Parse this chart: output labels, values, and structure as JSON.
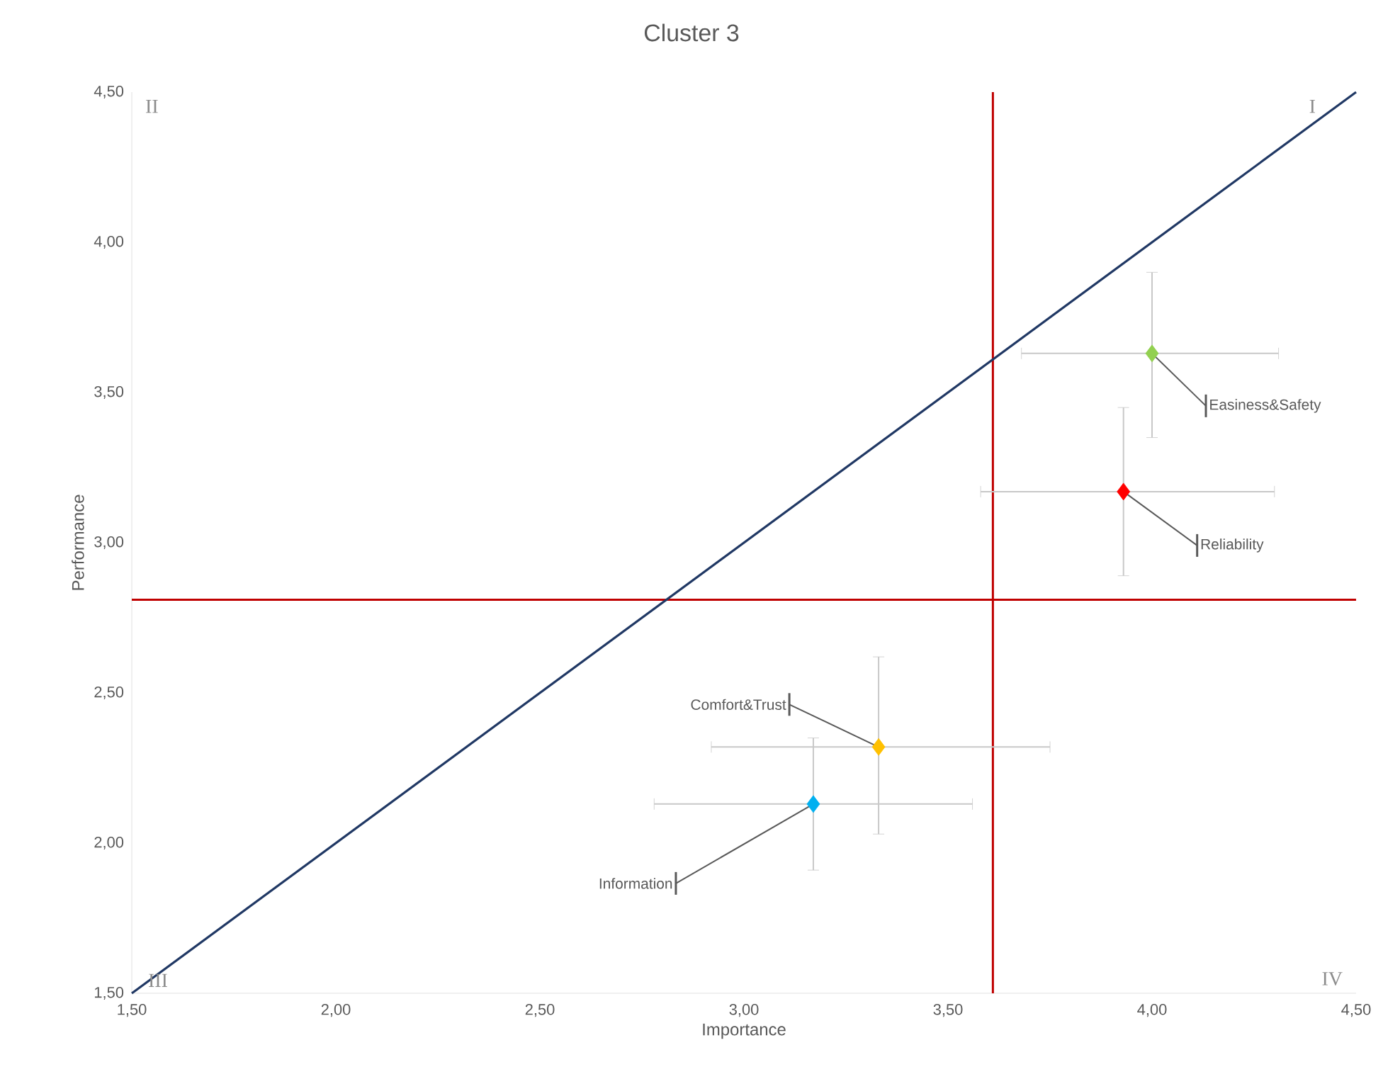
{
  "chart_data": {
    "type": "scatter",
    "title": "Cluster 3",
    "xlabel": "Importance",
    "ylabel": "Performance",
    "xlim": [
      1.5,
      4.5
    ],
    "ylim": [
      1.5,
      4.5
    ],
    "xticks": [
      {
        "value": 1.5,
        "label": "1,50"
      },
      {
        "value": 2.0,
        "label": "2,00"
      },
      {
        "value": 2.5,
        "label": "2,50"
      },
      {
        "value": 3.0,
        "label": "3,00"
      },
      {
        "value": 3.5,
        "label": "3,50"
      },
      {
        "value": 4.0,
        "label": "4,00"
      },
      {
        "value": 4.5,
        "label": "4,50"
      }
    ],
    "yticks": [
      {
        "value": 1.5,
        "label": "1,50"
      },
      {
        "value": 2.0,
        "label": "2,00"
      },
      {
        "value": 2.5,
        "label": "2,50"
      },
      {
        "value": 3.0,
        "label": "3,00"
      },
      {
        "value": 3.5,
        "label": "3,50"
      },
      {
        "value": 4.0,
        "label": "4,00"
      },
      {
        "value": 4.5,
        "label": "4,50"
      }
    ],
    "marker": "diamond",
    "grid": false,
    "series": [
      {
        "type": "line",
        "marker": "none",
        "color": "#203864",
        "x": [
          1.5,
          4.5
        ],
        "values": [
          1.5,
          4.5
        ]
      },
      {
        "name": "Easiness&Safety",
        "color": "#92d050",
        "x": [
          4.0
        ],
        "values": [
          3.63
        ],
        "errors": [
          [
            3.35,
            3.9
          ]
        ],
        "xerrors": [
          [
            3.68,
            4.31
          ]
        ]
      },
      {
        "name": "Reliability",
        "color": "#ff0000",
        "x": [
          3.93
        ],
        "values": [
          3.17
        ],
        "errors": [
          [
            2.89,
            3.45
          ]
        ],
        "xerrors": [
          [
            3.58,
            4.3
          ]
        ]
      },
      {
        "name": "Comfort&Trust",
        "color": "#ffc000",
        "x": [
          3.33
        ],
        "values": [
          2.32
        ],
        "errors": [
          [
            2.03,
            2.62
          ]
        ],
        "xerrors": [
          [
            2.92,
            3.75
          ]
        ]
      },
      {
        "name": "Information",
        "color": "#00b0f0",
        "x": [
          3.17
        ],
        "values": [
          2.13
        ],
        "errors": [
          [
            1.91,
            2.35
          ]
        ],
        "xerrors": [
          [
            2.78,
            3.56
          ]
        ]
      }
    ],
    "ref_lines": [
      {
        "axis": "x",
        "value": 3.61,
        "color": "#c00000"
      },
      {
        "axis": "y",
        "value": 2.81,
        "color": "#c00000"
      }
    ],
    "annotations": [
      "II",
      "I",
      "III",
      "IV"
    ]
  }
}
